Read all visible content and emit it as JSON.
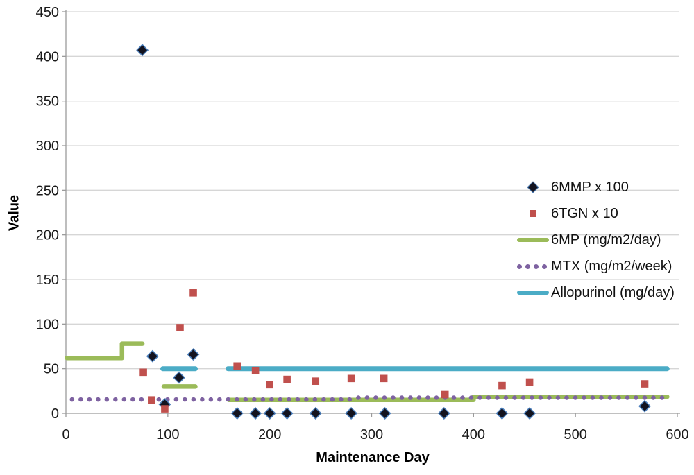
{
  "chart_data": {
    "type": "scatter",
    "title": "",
    "xlabel": "Maintenance Day",
    "ylabel": "Value",
    "xlim": [
      0,
      600
    ],
    "ylim": [
      0,
      450
    ],
    "x_ticks": [
      0,
      100,
      200,
      300,
      400,
      500,
      600
    ],
    "y_ticks": [
      0,
      50,
      100,
      150,
      200,
      250,
      300,
      350,
      400,
      450
    ],
    "grid": true,
    "legend_position": "middle-right",
    "series": [
      {
        "name": "6MMP x 100",
        "type": "scatter",
        "marker": "diamond",
        "fill": "#13131f",
        "edge": "#4a7ebb",
        "points": [
          [
            75,
            407
          ],
          [
            85,
            64
          ],
          [
            97,
            10
          ],
          [
            111,
            40
          ],
          [
            125,
            66
          ],
          [
            168,
            0
          ],
          [
            186,
            0
          ],
          [
            200,
            0
          ],
          [
            217,
            0
          ],
          [
            245,
            0
          ],
          [
            280,
            0
          ],
          [
            313,
            0
          ],
          [
            371,
            0
          ],
          [
            428,
            0
          ],
          [
            455,
            0
          ],
          [
            568,
            8
          ]
        ]
      },
      {
        "name": "6TGN x 10",
        "type": "scatter",
        "marker": "square",
        "fill": "#c0504d",
        "points": [
          [
            76,
            46
          ],
          [
            84,
            15
          ],
          [
            97,
            5
          ],
          [
            112,
            96
          ],
          [
            125,
            135
          ],
          [
            168,
            53
          ],
          [
            186,
            48
          ],
          [
            200,
            32
          ],
          [
            217,
            38
          ],
          [
            245,
            36
          ],
          [
            280,
            39
          ],
          [
            312,
            39
          ],
          [
            372,
            21
          ],
          [
            428,
            31
          ],
          [
            455,
            35
          ],
          [
            568,
            33
          ]
        ]
      },
      {
        "name": "6MP (mg/m2/day)",
        "type": "line",
        "style": "solid",
        "color": "#9bbb59",
        "width": 6.5,
        "segments": [
          [
            [
              1,
              62
            ],
            [
              55,
              62
            ],
            [
              55,
              78
            ],
            [
              75,
              78
            ]
          ],
          [
            [
              96,
              30
            ],
            [
              127,
              30
            ]
          ],
          [
            [
              160,
              15
            ],
            [
              400,
              15
            ],
            [
              400,
              18.5
            ],
            [
              590,
              18.5
            ]
          ]
        ]
      },
      {
        "name": "MTX (mg/m2/week)",
        "type": "line",
        "style": "dotted",
        "color": "#7e62a1",
        "width": 6.5,
        "segments": [
          [
            [
              6,
              15.5
            ],
            [
              284,
              15.5
            ]
          ],
          [
            [
              287,
              17.5
            ],
            [
              590,
              17.5
            ]
          ]
        ]
      },
      {
        "name": "Allopurinol (mg/day)",
        "type": "line",
        "style": "solid",
        "color": "#4bacc6",
        "width": 7,
        "segments": [
          [
            [
              95,
              50
            ],
            [
              127,
              50
            ]
          ],
          [
            [
              159,
              50
            ],
            [
              590,
              50
            ]
          ]
        ]
      }
    ],
    "colors": {
      "gridline": "#d6d6d6",
      "axis": "#9b9b9b",
      "tick_label": "#1a1a1a"
    }
  }
}
